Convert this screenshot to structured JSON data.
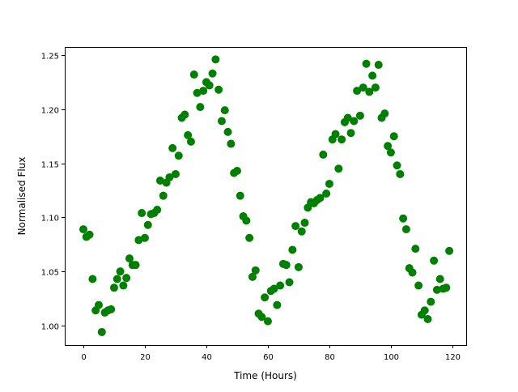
{
  "chart_data": {
    "type": "scatter",
    "title": "",
    "xlabel": "Time (Hours)",
    "ylabel": "Normalised Flux",
    "xlim": [
      -6.05,
      124.5
    ],
    "ylim": [
      0.982,
      1.2575
    ],
    "xticks": [
      0,
      20,
      40,
      60,
      80,
      100,
      120
    ],
    "xtick_labels": [
      "0",
      "20",
      "40",
      "60",
      "80",
      "100",
      "120"
    ],
    "yticks": [
      1.0,
      1.05,
      1.1,
      1.15,
      1.2,
      1.25
    ],
    "ytick_labels": [
      "1.00",
      "1.05",
      "1.10",
      "1.15",
      "1.20",
      "1.25"
    ],
    "grid": false,
    "marker_color": "#008000",
    "x": [
      0,
      1,
      2,
      3,
      4,
      5,
      6,
      7,
      8,
      9,
      10,
      11,
      12,
      13,
      14,
      15,
      16,
      17,
      18,
      19,
      20,
      21,
      22,
      23,
      24,
      25,
      26,
      27,
      28,
      29,
      30,
      31,
      32,
      33,
      34,
      35,
      36,
      37,
      38,
      39,
      40,
      41,
      42,
      43,
      44,
      45,
      46,
      47,
      48,
      49,
      50,
      51,
      52,
      53,
      54,
      55,
      56,
      57,
      58,
      59,
      60,
      61,
      62,
      63,
      64,
      65,
      66,
      67,
      68,
      69,
      70,
      71,
      72,
      73,
      74,
      75,
      76,
      77,
      78,
      79,
      80,
      81,
      82,
      83,
      84,
      85,
      86,
      87,
      88,
      89,
      90,
      91,
      92,
      93,
      94,
      95,
      96,
      97,
      98,
      99,
      100,
      101,
      102,
      103,
      104,
      105,
      106,
      107,
      108,
      109,
      110,
      111,
      112,
      113,
      114,
      115,
      116,
      117,
      118,
      119
    ],
    "y": [
      1.089,
      1.082,
      1.084,
      1.043,
      1.014,
      1.019,
      0.994,
      1.012,
      1.014,
      1.015,
      1.035,
      1.043,
      1.05,
      1.037,
      1.044,
      1.062,
      1.056,
      1.056,
      1.079,
      1.104,
      1.081,
      1.093,
      1.103,
      1.104,
      1.107,
      1.134,
      1.12,
      1.132,
      1.137,
      1.164,
      1.14,
      1.157,
      1.192,
      1.195,
      1.176,
      1.17,
      1.232,
      1.215,
      1.202,
      1.217,
      1.225,
      1.222,
      1.233,
      1.246,
      1.218,
      1.189,
      1.199,
      1.179,
      1.168,
      1.141,
      1.143,
      1.12,
      1.101,
      1.097,
      1.081,
      1.045,
      1.051,
      1.011,
      1.008,
      1.026,
      1.004,
      1.032,
      1.034,
      1.019,
      1.037,
      1.057,
      1.056,
      1.04,
      1.07,
      1.092,
      1.054,
      1.087,
      1.095,
      1.109,
      1.114,
      1.113,
      1.116,
      1.118,
      1.158,
      1.122,
      1.131,
      1.172,
      1.177,
      1.145,
      1.172,
      1.188,
      1.192,
      1.178,
      1.189,
      1.217,
      1.194,
      1.22,
      1.242,
      1.216,
      1.231,
      1.22,
      1.241,
      1.192,
      1.196,
      1.166,
      1.16,
      1.175,
      1.148,
      1.14,
      1.099,
      1.089,
      1.053,
      1.049,
      1.071,
      1.037,
      1.01,
      1.014,
      1.006,
      1.022,
      1.06,
      1.033,
      1.043,
      1.034,
      1.035,
      1.069
    ]
  }
}
